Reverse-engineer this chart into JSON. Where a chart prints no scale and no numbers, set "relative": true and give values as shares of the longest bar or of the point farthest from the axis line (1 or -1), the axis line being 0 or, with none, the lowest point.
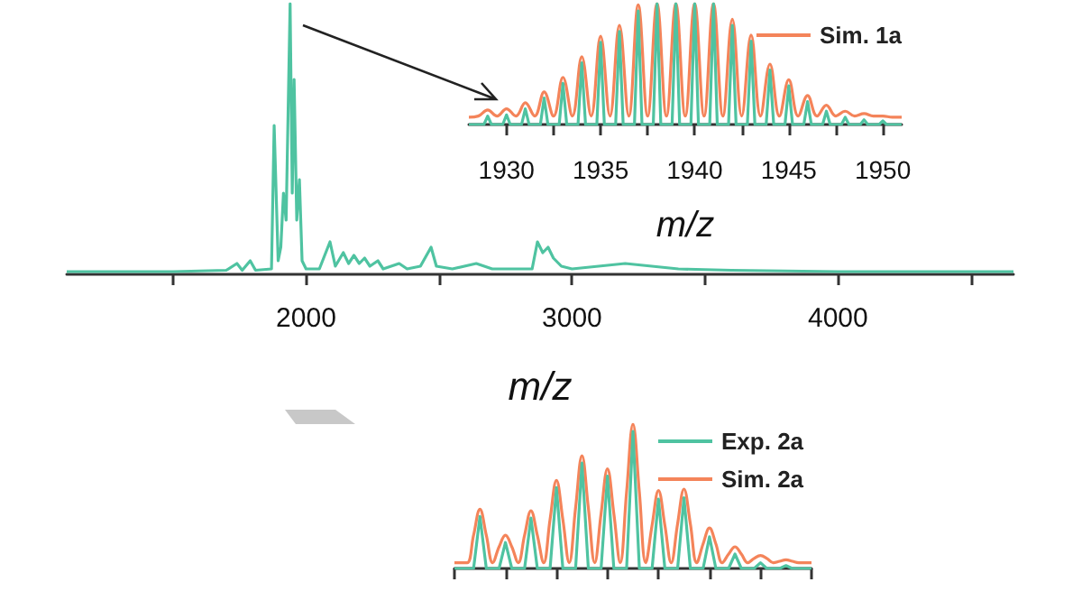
{
  "chart_data": [
    {
      "type": "line",
      "relative": true,
      "xlabel": "m/z",
      "xlim": [
        1100,
        4660
      ],
      "xticks": [
        {
          "value": 1500,
          "label": null
        },
        2000,
        {
          "value": 2500,
          "label": null
        },
        3000,
        {
          "value": 3500,
          "label": null
        },
        4000,
        {
          "value": 4500,
          "label": null
        }
      ],
      "tick_labels": "x",
      "marker": "none",
      "series": [
        {
          "color": "#4fc3a1",
          "x": [
            1100,
            1500,
            1700,
            1740,
            1760,
            1790,
            1810,
            1870,
            1880,
            1895,
            1905,
            1915,
            1925,
            1940,
            1948,
            1955,
            1965,
            1975,
            1985,
            2000,
            2050,
            2090,
            2110,
            2140,
            2160,
            2180,
            2200,
            2220,
            2240,
            2270,
            2290,
            2350,
            2380,
            2430,
            2470,
            2490,
            2550,
            2640,
            2700,
            2850,
            2870,
            2890,
            2910,
            2930,
            2960,
            3000,
            3100,
            3200,
            3300,
            3400,
            3600,
            4000,
            4660
          ],
          "values": [
            0.01,
            0.01,
            0.015,
            0.04,
            0.015,
            0.05,
            0.015,
            0.02,
            0.55,
            0.05,
            0.1,
            0.3,
            0.2,
            1.0,
            0.3,
            0.72,
            0.2,
            0.35,
            0.05,
            0.02,
            0.02,
            0.12,
            0.03,
            0.08,
            0.04,
            0.07,
            0.04,
            0.06,
            0.03,
            0.05,
            0.02,
            0.04,
            0.02,
            0.03,
            0.1,
            0.03,
            0.02,
            0.04,
            0.02,
            0.02,
            0.12,
            0.08,
            0.1,
            0.06,
            0.03,
            0.02,
            0.03,
            0.04,
            0.03,
            0.02,
            0.015,
            0.01,
            0.01
          ]
        }
      ]
    },
    {
      "type": "line",
      "relative": true,
      "xlabel": "m/z",
      "xlim": [
        1928,
        1951
      ],
      "xticks": [
        1930,
        {
          "value": 1932.5,
          "label": null
        },
        1935,
        {
          "value": 1937.5,
          "label": null
        },
        1940,
        {
          "value": 1942.5,
          "label": null
        },
        1945,
        {
          "value": 1947.5,
          "label": null
        },
        1950
      ],
      "tick_labels": "x",
      "marker": "none",
      "legend": "top right",
      "series": [
        {
          "color": "#4fc3a1",
          "x": [
            1928,
            1928.8,
            1929,
            1929.2,
            1929.8,
            1930,
            1930.2,
            1930.8,
            1931,
            1931.2,
            1931.8,
            1932,
            1932.2,
            1932.8,
            1933,
            1933.2,
            1933.8,
            1934,
            1934.2,
            1934.8,
            1935,
            1935.2,
            1935.8,
            1936,
            1936.2,
            1936.8,
            1937,
            1937.2,
            1937.8,
            1938,
            1938.2,
            1938.8,
            1939,
            1939.2,
            1939.8,
            1940,
            1940.2,
            1940.8,
            1941,
            1941.2,
            1941.8,
            1942,
            1942.2,
            1942.8,
            1943,
            1943.2,
            1943.8,
            1944,
            1944.2,
            1944.8,
            1945,
            1945.2,
            1945.8,
            1946,
            1946.2,
            1946.8,
            1947,
            1947.2,
            1947.8,
            1948,
            1948.2,
            1948.8,
            1949,
            1949.2,
            1949.8,
            1950,
            1950.2,
            1951
          ],
          "values": [
            0,
            0,
            0.07,
            0,
            0,
            0.08,
            0,
            0,
            0.13,
            0,
            0,
            0.22,
            0,
            0,
            0.34,
            0,
            0,
            0.51,
            0,
            0,
            0.68,
            0,
            0,
            0.77,
            0,
            0,
            0.94,
            0,
            0,
            1.0,
            0,
            0,
            1.0,
            0,
            0,
            1.0,
            0,
            0,
            1.0,
            0,
            0,
            0.82,
            0,
            0,
            0.69,
            0,
            0,
            0.45,
            0,
            0,
            0.32,
            0,
            0,
            0.19,
            0,
            0,
            0.11,
            0,
            0,
            0.06,
            0,
            0,
            0.04,
            0,
            0,
            0.03,
            0,
            0
          ]
        },
        {
          "name": "Sim. 1a",
          "color": "#f4845a",
          "x": [
            1928,
            1928.5,
            1929,
            1929.5,
            1930,
            1930.5,
            1931,
            1931.5,
            1932,
            1932.5,
            1933,
            1933.5,
            1934,
            1934.5,
            1935,
            1935.5,
            1936,
            1936.5,
            1937,
            1937.5,
            1938,
            1938.5,
            1939,
            1939.5,
            1940,
            1940.5,
            1941,
            1941.5,
            1942,
            1942.5,
            1943,
            1943.5,
            1944,
            1944.5,
            1945,
            1945.5,
            1946,
            1946.5,
            1947,
            1947.5,
            1948,
            1948.5,
            1949,
            1949.5,
            1950,
            1950.5,
            1951
          ],
          "values": [
            0.06,
            0.07,
            0.12,
            0.07,
            0.13,
            0.07,
            0.18,
            0.07,
            0.27,
            0.07,
            0.39,
            0.07,
            0.56,
            0.07,
            0.73,
            0.07,
            0.82,
            0.07,
            0.99,
            0.07,
            1.0,
            0.07,
            1.0,
            0.07,
            1.0,
            0.07,
            1.0,
            0.07,
            0.87,
            0.07,
            0.74,
            0.07,
            0.5,
            0.07,
            0.37,
            0.07,
            0.24,
            0.07,
            0.16,
            0.07,
            0.11,
            0.07,
            0.09,
            0.07,
            0.07,
            0.06,
            0.06
          ]
        }
      ]
    },
    {
      "type": "line",
      "relative": true,
      "categories": [
        null,
        null,
        null,
        null,
        null,
        null,
        null,
        null,
        null,
        null,
        null,
        null,
        null,
        null,
        null,
        null,
        null,
        null,
        null,
        null,
        null,
        null,
        null,
        null,
        null,
        null,
        null,
        null,
        null,
        null,
        null,
        null,
        null,
        null,
        null,
        null,
        null,
        null,
        null,
        null,
        null,
        null,
        null,
        null,
        null,
        null,
        null,
        null,
        null,
        null,
        null,
        null,
        null,
        null,
        null,
        null,
        null
      ],
      "tick_labels": false,
      "marker": "none",
      "legend": "top right",
      "series": [
        {
          "name": "Exp. 2a",
          "color": "#4fc3a1",
          "values": [
            0,
            0,
            0,
            0,
            0.36,
            0,
            0,
            0,
            0.18,
            0,
            0,
            0,
            0.35,
            0,
            0,
            0,
            0.56,
            0,
            0,
            0,
            0.73,
            0,
            0,
            0,
            0.64,
            0,
            0,
            0,
            0.95,
            0,
            0,
            0,
            0.48,
            0,
            0,
            0,
            0.49,
            0,
            0,
            0,
            0.22,
            0,
            0,
            0,
            0.1,
            0,
            0,
            0,
            0.04,
            0,
            0,
            0,
            0.02,
            0,
            0,
            0,
            0
          ]
        },
        {
          "name": "Sim. 2a",
          "color": "#f4845a",
          "values": [
            0.04,
            0.04,
            0.04,
            0.23,
            0.41,
            0.23,
            0.04,
            0.15,
            0.23,
            0.15,
            0.04,
            0.23,
            0.4,
            0.23,
            0.04,
            0.34,
            0.61,
            0.34,
            0.04,
            0.42,
            0.78,
            0.42,
            0.04,
            0.38,
            0.69,
            0.38,
            0.04,
            0.53,
            1.0,
            0.53,
            0.04,
            0.3,
            0.54,
            0.3,
            0.04,
            0.31,
            0.55,
            0.31,
            0.04,
            0.17,
            0.28,
            0.17,
            0.04,
            0.1,
            0.15,
            0.1,
            0.04,
            0.07,
            0.09,
            0.07,
            0.04,
            0.05,
            0.06,
            0.05,
            0.04,
            0.04,
            0.04
          ]
        }
      ]
    }
  ]
}
